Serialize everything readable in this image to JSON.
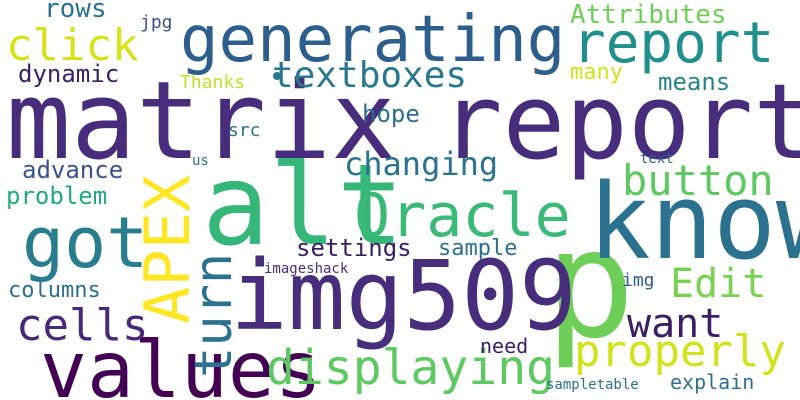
{
  "wordcloud": {
    "words": [
      {
        "key": "matrix",
        "text": "matrix",
        "color": "#472d7b"
      },
      {
        "key": "report_big",
        "text": "report",
        "color": "#472d7b"
      },
      {
        "key": "generating",
        "text": "generating",
        "color": "#2d5e8c"
      },
      {
        "key": "report_small",
        "text": "report",
        "color": "#21908d"
      },
      {
        "key": "p",
        "text": "p",
        "color": "#6ece58"
      },
      {
        "key": "know",
        "text": "know",
        "color": "#2c728e"
      },
      {
        "key": "alt",
        "text": "alt",
        "color": "#35b779"
      },
      {
        "key": "oracle",
        "text": "Oracle",
        "color": "#3aba76"
      },
      {
        "key": "img509",
        "text": "img509",
        "color": "#472d7b"
      },
      {
        "key": "values",
        "text": "values",
        "color": "#440154"
      },
      {
        "key": "apex",
        "text": "APEX",
        "color": "#fde725"
      },
      {
        "key": "got",
        "text": "got",
        "color": "#287d8e"
      },
      {
        "key": "turn",
        "text": "turn",
        "color": "#2c728e"
      },
      {
        "key": "displaying",
        "text": "displaying",
        "color": "#5ec962"
      },
      {
        "key": "properly",
        "text": "properly",
        "color": "#d2e21b"
      },
      {
        "key": "want",
        "text": "want",
        "color": "#3b1f63"
      },
      {
        "key": "edit",
        "text": "Edit",
        "color": "#7ad151"
      },
      {
        "key": "button",
        "text": "button",
        "color": "#5ec962"
      },
      {
        "key": "textboxes",
        "text": "textboxes",
        "color": "#2a788e"
      },
      {
        "key": "changing",
        "text": "changing",
        "color": "#2c728e"
      },
      {
        "key": "cells",
        "text": "cells",
        "color": "#482878"
      },
      {
        "key": "click",
        "text": "click",
        "color": "#d8e219"
      },
      {
        "key": "dynamic",
        "text": "dynamic",
        "color": "#3b1f63"
      },
      {
        "key": "rows",
        "text": "rows",
        "color": "#2c728e"
      },
      {
        "key": "jpg",
        "text": "jpg",
        "color": "#3b528b"
      },
      {
        "key": "attributes",
        "text": "Attributes",
        "color": "#6ece58"
      },
      {
        "key": "many",
        "text": "many",
        "color": "#d2e21b"
      },
      {
        "key": "means",
        "text": "means",
        "color": "#26828e"
      },
      {
        "key": "thanks",
        "text": "Thanks",
        "color": "#c2df23"
      },
      {
        "key": "hope",
        "text": "hope",
        "color": "#2d6e8e"
      },
      {
        "key": "src",
        "text": "src",
        "color": "#2c728e"
      },
      {
        "key": "advance",
        "text": "advance",
        "color": "#3b528b"
      },
      {
        "key": "problem",
        "text": "problem",
        "color": "#22a884"
      },
      {
        "key": "us",
        "text": "us",
        "color": "#2c728e"
      },
      {
        "key": "text",
        "text": "text",
        "color": "#2d5e8c"
      },
      {
        "key": "settings",
        "text": "settings",
        "color": "#3b1f63"
      },
      {
        "key": "sample",
        "text": "sample",
        "color": "#2d708e"
      },
      {
        "key": "imageshack",
        "text": "imageshack",
        "color": "#472d7b"
      },
      {
        "key": "columns",
        "text": "columns",
        "color": "#2d708e"
      },
      {
        "key": "img",
        "text": "img",
        "color": "#2d5e8c"
      },
      {
        "key": "need",
        "text": "need",
        "color": "#3b1f63"
      },
      {
        "key": "explain",
        "text": "explain",
        "color": "#2d708e"
      },
      {
        "key": "sampletable",
        "text": "sampletable",
        "color": "#2d708e"
      }
    ]
  }
}
